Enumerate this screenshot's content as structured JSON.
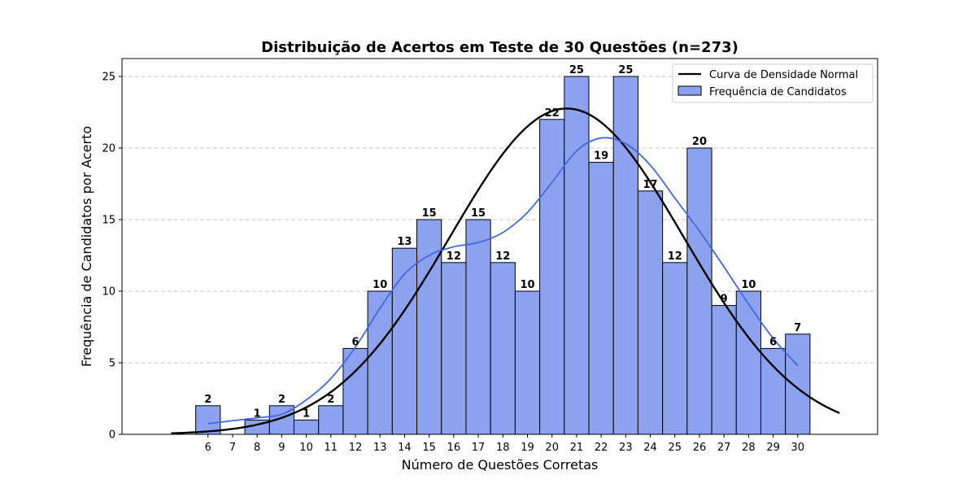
{
  "chart_data": {
    "type": "bar",
    "title": "Distribuição de Acertos em Teste de 30 Questões (n=273)",
    "xlabel": "Número de Questões Corretas",
    "ylabel": "Frequência de Candidatos por Acerto",
    "x": [
      6,
      7,
      8,
      9,
      10,
      11,
      12,
      13,
      14,
      15,
      16,
      17,
      18,
      19,
      20,
      21,
      22,
      23,
      24,
      25,
      26,
      27,
      28,
      29,
      30
    ],
    "values": [
      2,
      0,
      1,
      2,
      1,
      2,
      6,
      10,
      13,
      15,
      12,
      15,
      12,
      10,
      22,
      25,
      19,
      25,
      17,
      12,
      20,
      9,
      10,
      6,
      7
    ],
    "data_labels": [
      "2",
      "",
      "1",
      "2",
      "1",
      "2",
      "6",
      "10",
      "13",
      "15",
      "12",
      "15",
      "12",
      "10",
      "22",
      "25",
      "19",
      "25",
      "17",
      "12",
      "20",
      "9",
      "10",
      "6",
      "7"
    ],
    "xticks": [
      "6",
      "7",
      "8",
      "9",
      "10",
      "11",
      "12",
      "13",
      "14",
      "15",
      "16",
      "17",
      "18",
      "19",
      "20",
      "21",
      "22",
      "23",
      "24",
      "25",
      "26",
      "27",
      "28",
      "29",
      "30"
    ],
    "yticks": [
      "0",
      "5",
      "10",
      "15",
      "20",
      "25"
    ],
    "xlim": [
      2.5,
      33.25
    ],
    "ylim": [
      0,
      26.25
    ],
    "grid": "horizontal dashed",
    "legend_position": "top-right",
    "series": [
      {
        "name": "Frequência de Candidatos",
        "kind": "histogram",
        "color": "#8da2ef",
        "edge_color": "#000000"
      },
      {
        "name": "Curva de Densidade Normal",
        "kind": "line",
        "color": "#000000",
        "mean": 20.6,
        "sd": 4.75,
        "scale": 271
      },
      {
        "kind": "kde",
        "color": "#4169e1",
        "x": [
          6,
          7,
          8,
          9,
          10,
          11,
          12,
          13,
          14,
          15,
          16,
          17,
          18,
          19,
          20,
          21,
          22,
          23,
          24,
          25,
          26,
          27,
          28,
          29,
          30
        ],
        "y": [
          0.75,
          0.95,
          1.15,
          1.4,
          2.4,
          3.9,
          6.1,
          8.8,
          11.2,
          12.5,
          13.1,
          13.4,
          14.1,
          15.5,
          17.6,
          19.8,
          20.7,
          20.3,
          18.8,
          16.5,
          14.2,
          11.7,
          9.1,
          6.7,
          4.8
        ]
      }
    ]
  }
}
